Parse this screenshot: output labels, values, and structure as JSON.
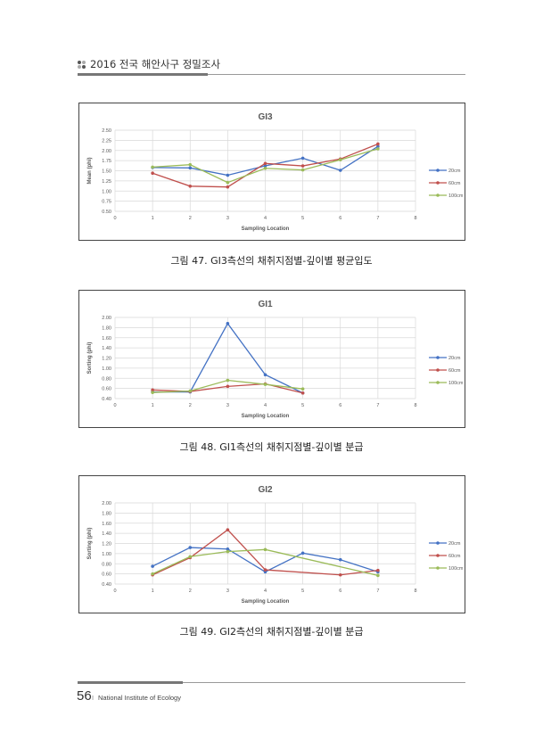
{
  "header": {
    "title": "2016 전국 해안사구 정밀조사"
  },
  "footer": {
    "page": "56",
    "separator": "I",
    "org": "National Institute of Ecology"
  },
  "captions": [
    "그림 47. GI3측선의 채취지점별-깊이별 평균입도",
    "그림 48. GI1측선의 채취지점별-깊이별 분급",
    "그림 49. GI2측선의 채취지점별-깊이별 분급"
  ],
  "colors": {
    "20cm": "#4472c4",
    "60cm": "#c0504d",
    "100cm": "#9bbb59"
  },
  "chart_data": [
    {
      "type": "line",
      "title": "GI3",
      "xlabel": "Sampling Location",
      "ylabel": "Mean (phi)",
      "xlim": [
        0,
        8
      ],
      "ylim": [
        0.5,
        2.5
      ],
      "ystep": 0.25,
      "ydecimals": 2,
      "grid": true,
      "legend": "right",
      "x": [
        1,
        2,
        3,
        4,
        5,
        6,
        7
      ],
      "series": [
        {
          "name": "20cm",
          "values": [
            1.58,
            1.57,
            1.39,
            1.62,
            1.81,
            1.51,
            2.1
          ]
        },
        {
          "name": "60cm",
          "values": [
            1.44,
            1.12,
            1.1,
            1.68,
            1.62,
            1.79,
            2.16
          ]
        },
        {
          "name": "100cm",
          "values": [
            1.59,
            1.65,
            1.21,
            1.56,
            1.52,
            1.77,
            2.04
          ]
        }
      ]
    },
    {
      "type": "line",
      "title": "GI1",
      "xlabel": "Sampling Location",
      "ylabel": "Sorting (phi)",
      "xlim": [
        0,
        8
      ],
      "ylim": [
        0.4,
        2.0
      ],
      "ystep": 0.2,
      "ydecimals": 2,
      "grid": true,
      "legend": "right",
      "x": [
        1,
        2,
        3,
        4,
        5
      ],
      "series": [
        {
          "name": "20cm",
          "values": [
            0.53,
            0.53,
            1.88,
            0.87,
            0.51
          ]
        },
        {
          "name": "60cm",
          "values": [
            0.57,
            0.54,
            0.64,
            0.69,
            0.51
          ]
        },
        {
          "name": "100cm",
          "values": [
            0.52,
            0.55,
            0.76,
            0.68,
            0.59
          ]
        }
      ]
    },
    {
      "type": "line",
      "title": "GI2",
      "xlabel": "Sampling Location",
      "ylabel": "Sorting (phi)",
      "xlim": [
        0,
        8
      ],
      "ylim": [
        0.4,
        2.0
      ],
      "ystep": 0.2,
      "ydecimals": 2,
      "grid": true,
      "legend": "right",
      "x": [
        1,
        2,
        3,
        4,
        5,
        6,
        7
      ],
      "series": [
        {
          "name": "20cm",
          "values": [
            0.75,
            1.12,
            1.09,
            0.64,
            1.01,
            0.88,
            0.64
          ]
        },
        {
          "name": "60cm",
          "values": [
            0.58,
            0.92,
            1.47,
            0.68,
            null,
            0.58,
            0.67
          ]
        },
        {
          "name": "100cm",
          "values": [
            0.6,
            0.94,
            1.04,
            1.08,
            null,
            null,
            0.57
          ]
        }
      ]
    }
  ]
}
